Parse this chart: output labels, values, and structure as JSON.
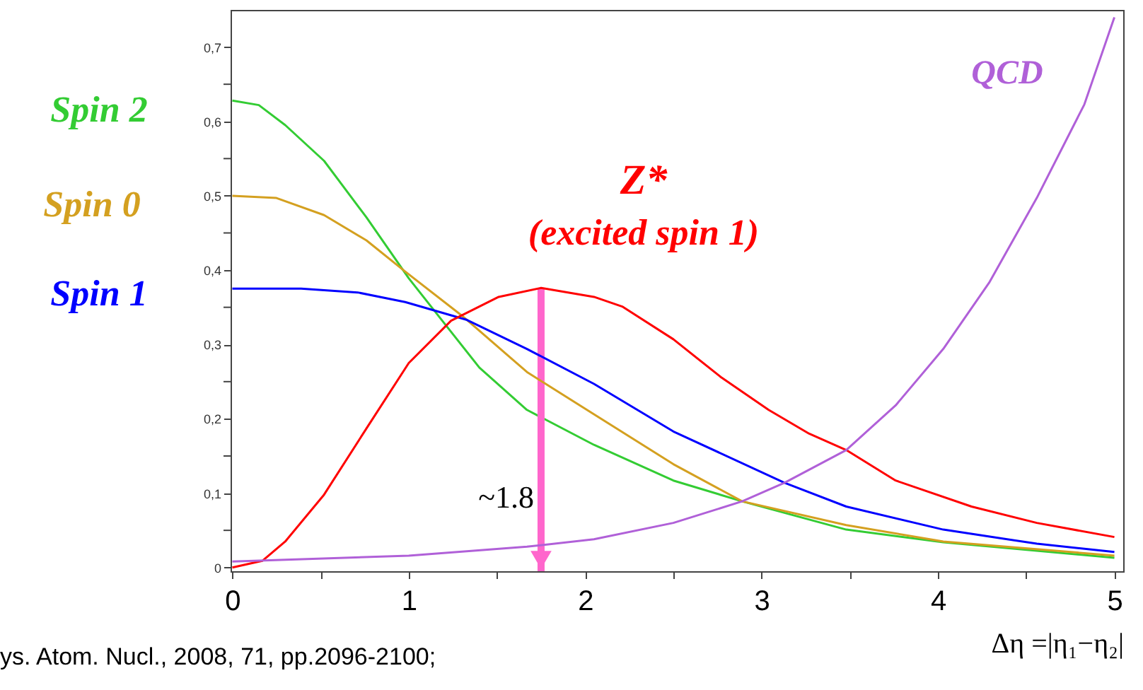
{
  "chart_data": {
    "type": "line",
    "xlabel": "Δη =|η₁−η₂|",
    "xlim": [
      -0.01,
      5.05
    ],
    "ylim": [
      -0.005,
      0.75
    ],
    "xticks": [
      0,
      {
        "value": 0.5,
        "label": null
      },
      1,
      {
        "value": 1.5,
        "label": null
      },
      2,
      {
        "value": 2.5,
        "label": null
      },
      3,
      {
        "value": 3.5,
        "label": null
      },
      4,
      {
        "value": 4.5,
        "label": null
      },
      5
    ],
    "yticks": [
      0,
      {
        "value": 0.05,
        "label": null
      },
      {
        "value": 0.1,
        "label": "0,1"
      },
      {
        "value": 0.15,
        "label": null
      },
      {
        "value": 0.2,
        "label": "0,2"
      },
      {
        "value": 0.25,
        "label": null
      },
      {
        "value": 0.3,
        "label": "0,3"
      },
      {
        "value": 0.35,
        "label": null
      },
      {
        "value": 0.4,
        "label": "0,4"
      },
      {
        "value": 0.45,
        "label": null
      },
      {
        "value": 0.5,
        "label": "0,5"
      },
      {
        "value": 0.55,
        "label": null
      },
      {
        "value": 0.6,
        "label": "0,6"
      },
      {
        "value": 0.65,
        "label": null
      },
      {
        "value": 0.7,
        "label": "0,7"
      }
    ],
    "grid": false,
    "legend": false,
    "marker": "none",
    "line_style": "solid",
    "series": [
      {
        "name": "Spin 2",
        "color": "#33cc33",
        "x": [
          0,
          0.15,
          0.3,
          0.52,
          0.76,
          1.0,
          1.19,
          1.4,
          1.67,
          2.05,
          2.5,
          2.89,
          3.48,
          4.03,
          5
        ],
        "values": [
          0.628,
          0.622,
          0.595,
          0.547,
          0.471,
          0.389,
          0.332,
          0.269,
          0.212,
          0.165,
          0.117,
          0.089,
          0.051,
          0.034,
          0.013
        ]
      },
      {
        "name": "Spin 0",
        "color": "#d4a020",
        "x": [
          0,
          0.25,
          0.52,
          0.76,
          0.98,
          1.3,
          1.67,
          2.05,
          2.5,
          2.89,
          3.48,
          4.03,
          5
        ],
        "values": [
          0.5,
          0.497,
          0.474,
          0.44,
          0.398,
          0.339,
          0.263,
          0.206,
          0.139,
          0.089,
          0.057,
          0.035,
          0.016
        ]
      },
      {
        "name": "Spin 1",
        "color": "#0000ff",
        "x": [
          0,
          0.39,
          0.71,
          0.98,
          1.33,
          1.67,
          2.05,
          2.5,
          3.13,
          3.48,
          4.03,
          4.56,
          5
        ],
        "values": [
          0.375,
          0.375,
          0.37,
          0.357,
          0.333,
          0.294,
          0.247,
          0.183,
          0.114,
          0.082,
          0.051,
          0.032,
          0.021
        ]
      },
      {
        "name": "Z* (excited spin 1)",
        "color": "#ff0000",
        "x": [
          0,
          0.17,
          0.3,
          0.52,
          0.76,
          1.0,
          1.24,
          1.51,
          1.75,
          2.05,
          2.21,
          2.5,
          2.77,
          3.04,
          3.27,
          3.48,
          3.76,
          4.19,
          4.56,
          5
        ],
        "values": [
          0.0,
          0.009,
          0.035,
          0.098,
          0.187,
          0.275,
          0.332,
          0.364,
          0.376,
          0.364,
          0.351,
          0.307,
          0.256,
          0.212,
          0.18,
          0.158,
          0.117,
          0.082,
          0.06,
          0.041
        ]
      },
      {
        "name": "QCD",
        "color": "#b060d8",
        "x": [
          0,
          1.0,
          1.67,
          2.05,
          2.5,
          2.89,
          3.13,
          3.48,
          3.76,
          4.03,
          4.29,
          4.56,
          4.83,
          5
        ],
        "values": [
          0.008,
          0.016,
          0.028,
          0.038,
          0.06,
          0.089,
          0.114,
          0.158,
          0.218,
          0.294,
          0.383,
          0.497,
          0.623,
          0.74
        ]
      }
    ],
    "annotations": [
      "~1.8",
      "ys. Atom. Nucl., 2008, 71, pp.2096-2100;"
    ]
  }
}
